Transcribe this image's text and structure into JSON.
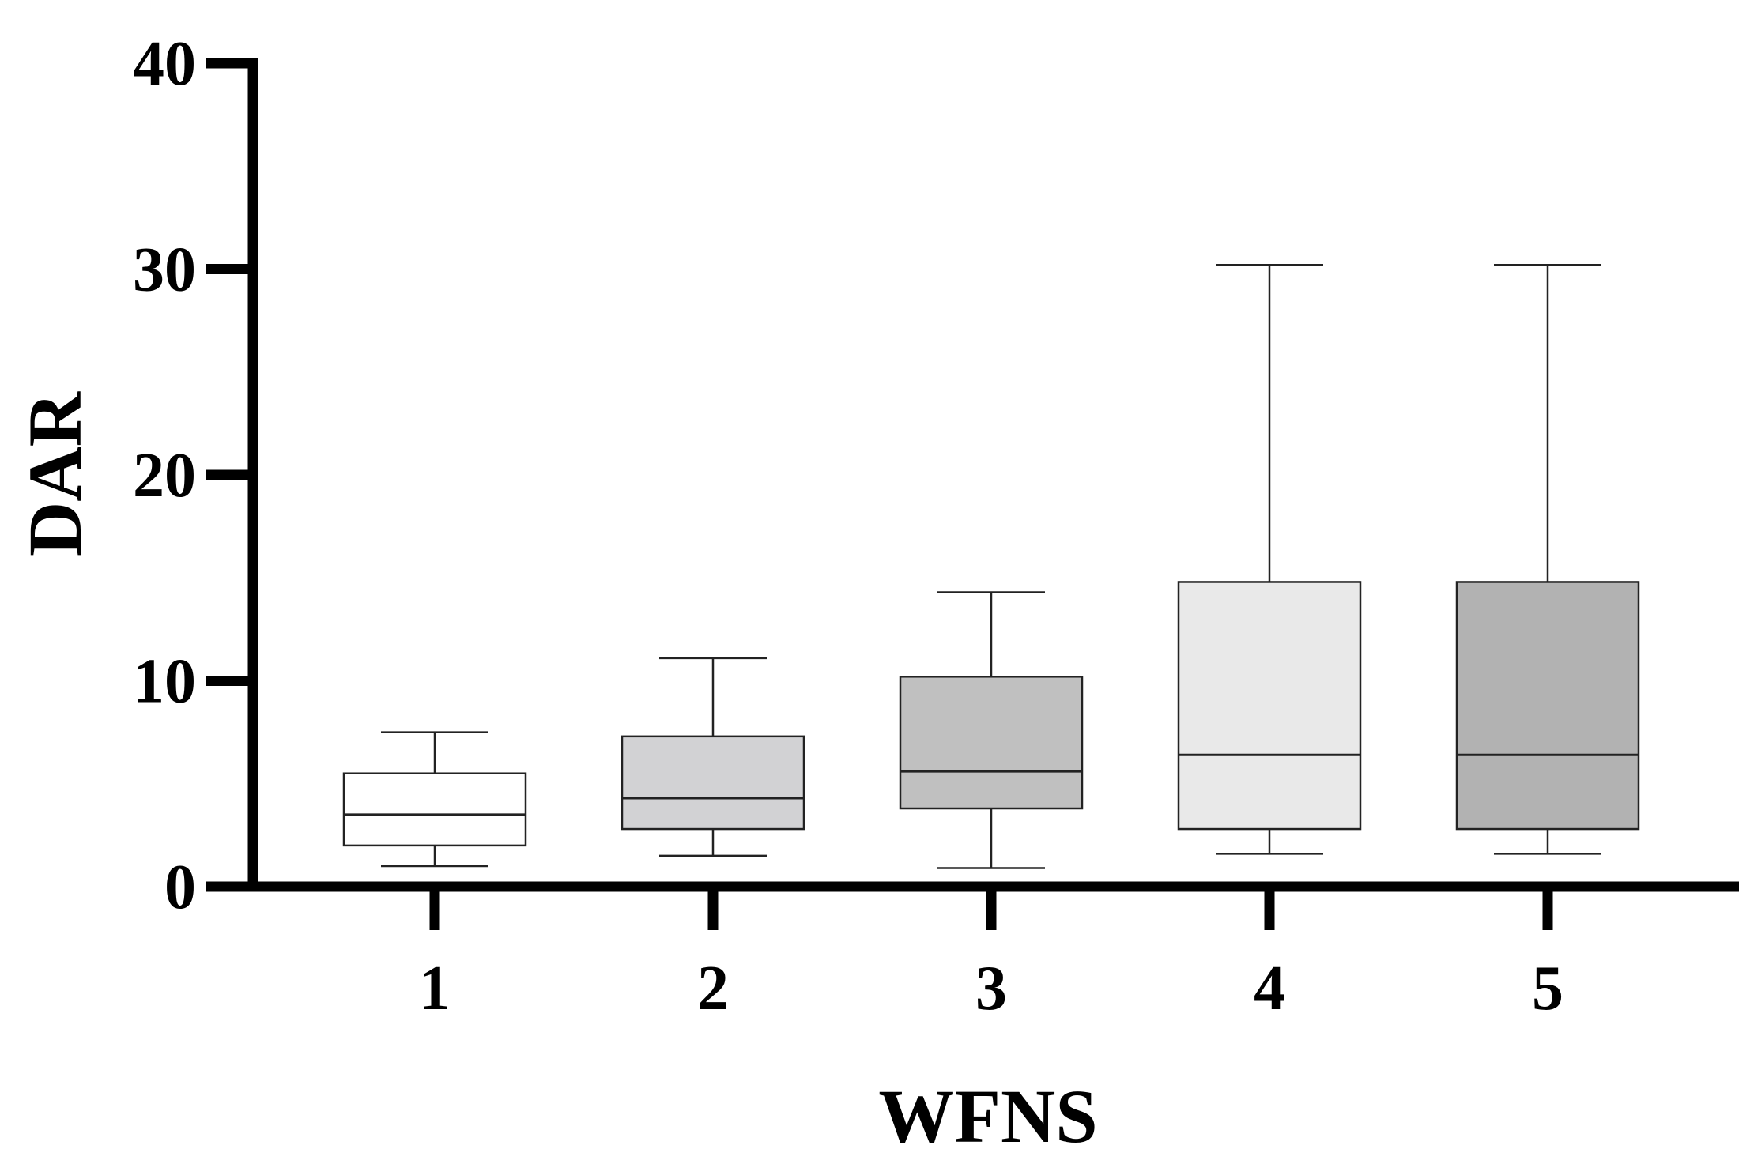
{
  "chart_data": {
    "type": "box",
    "xlabel": "WFNS",
    "ylabel": "DAR",
    "ylim": [
      0,
      40
    ],
    "yticks": [
      0,
      10,
      20,
      30,
      40
    ],
    "categories": [
      "1",
      "2",
      "3",
      "4",
      "5"
    ],
    "boxes": [
      {
        "category": "1",
        "min": 1.0,
        "q1": 2.0,
        "median": 3.5,
        "q3": 5.5,
        "max": 7.5,
        "fill": "#ffffff"
      },
      {
        "category": "2",
        "min": 1.5,
        "q1": 2.8,
        "median": 4.3,
        "q3": 7.3,
        "max": 11.1,
        "fill": "#d2d2d4"
      },
      {
        "category": "3",
        "min": 0.9,
        "q1": 3.8,
        "median": 5.6,
        "q3": 10.2,
        "max": 14.3,
        "fill": "#c0c0c0"
      },
      {
        "category": "4",
        "min": 1.6,
        "q1": 2.8,
        "median": 6.4,
        "q3": 14.8,
        "max": 30.2,
        "fill": "#e9e9e9"
      },
      {
        "category": "5",
        "min": 1.6,
        "q1": 2.8,
        "median": 6.4,
        "q3": 14.8,
        "max": 30.2,
        "fill": "#b2b2b2"
      }
    ],
    "legend": "none",
    "grid": false
  }
}
